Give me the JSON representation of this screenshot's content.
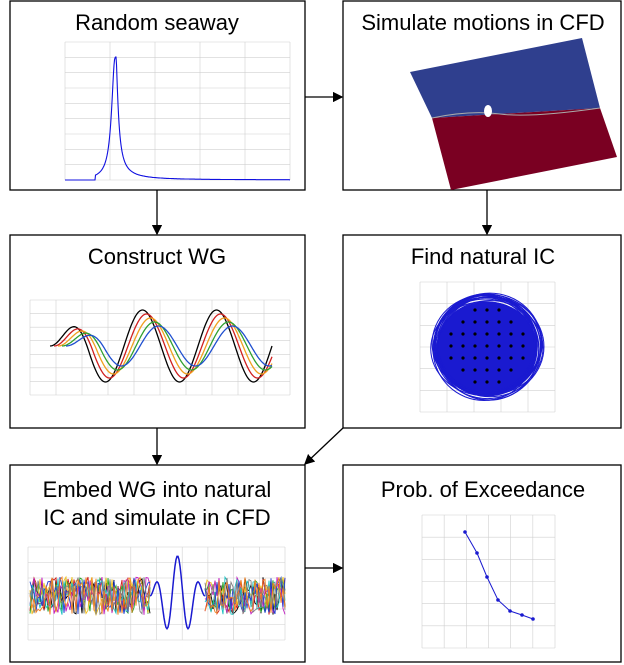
{
  "boxes": [
    {
      "title_lines": [
        "Random seaway"
      ]
    },
    {
      "title_lines": [
        "Simulate motions in CFD"
      ]
    },
    {
      "title_lines": [
        "Construct WG"
      ]
    },
    {
      "title_lines": [
        "Find natural IC"
      ]
    },
    {
      "title_lines": [
        "Embed WG into natural",
        "IC and simulate in CFD"
      ]
    },
    {
      "title_lines": [
        "Prob. of Exceedance"
      ]
    }
  ]
}
